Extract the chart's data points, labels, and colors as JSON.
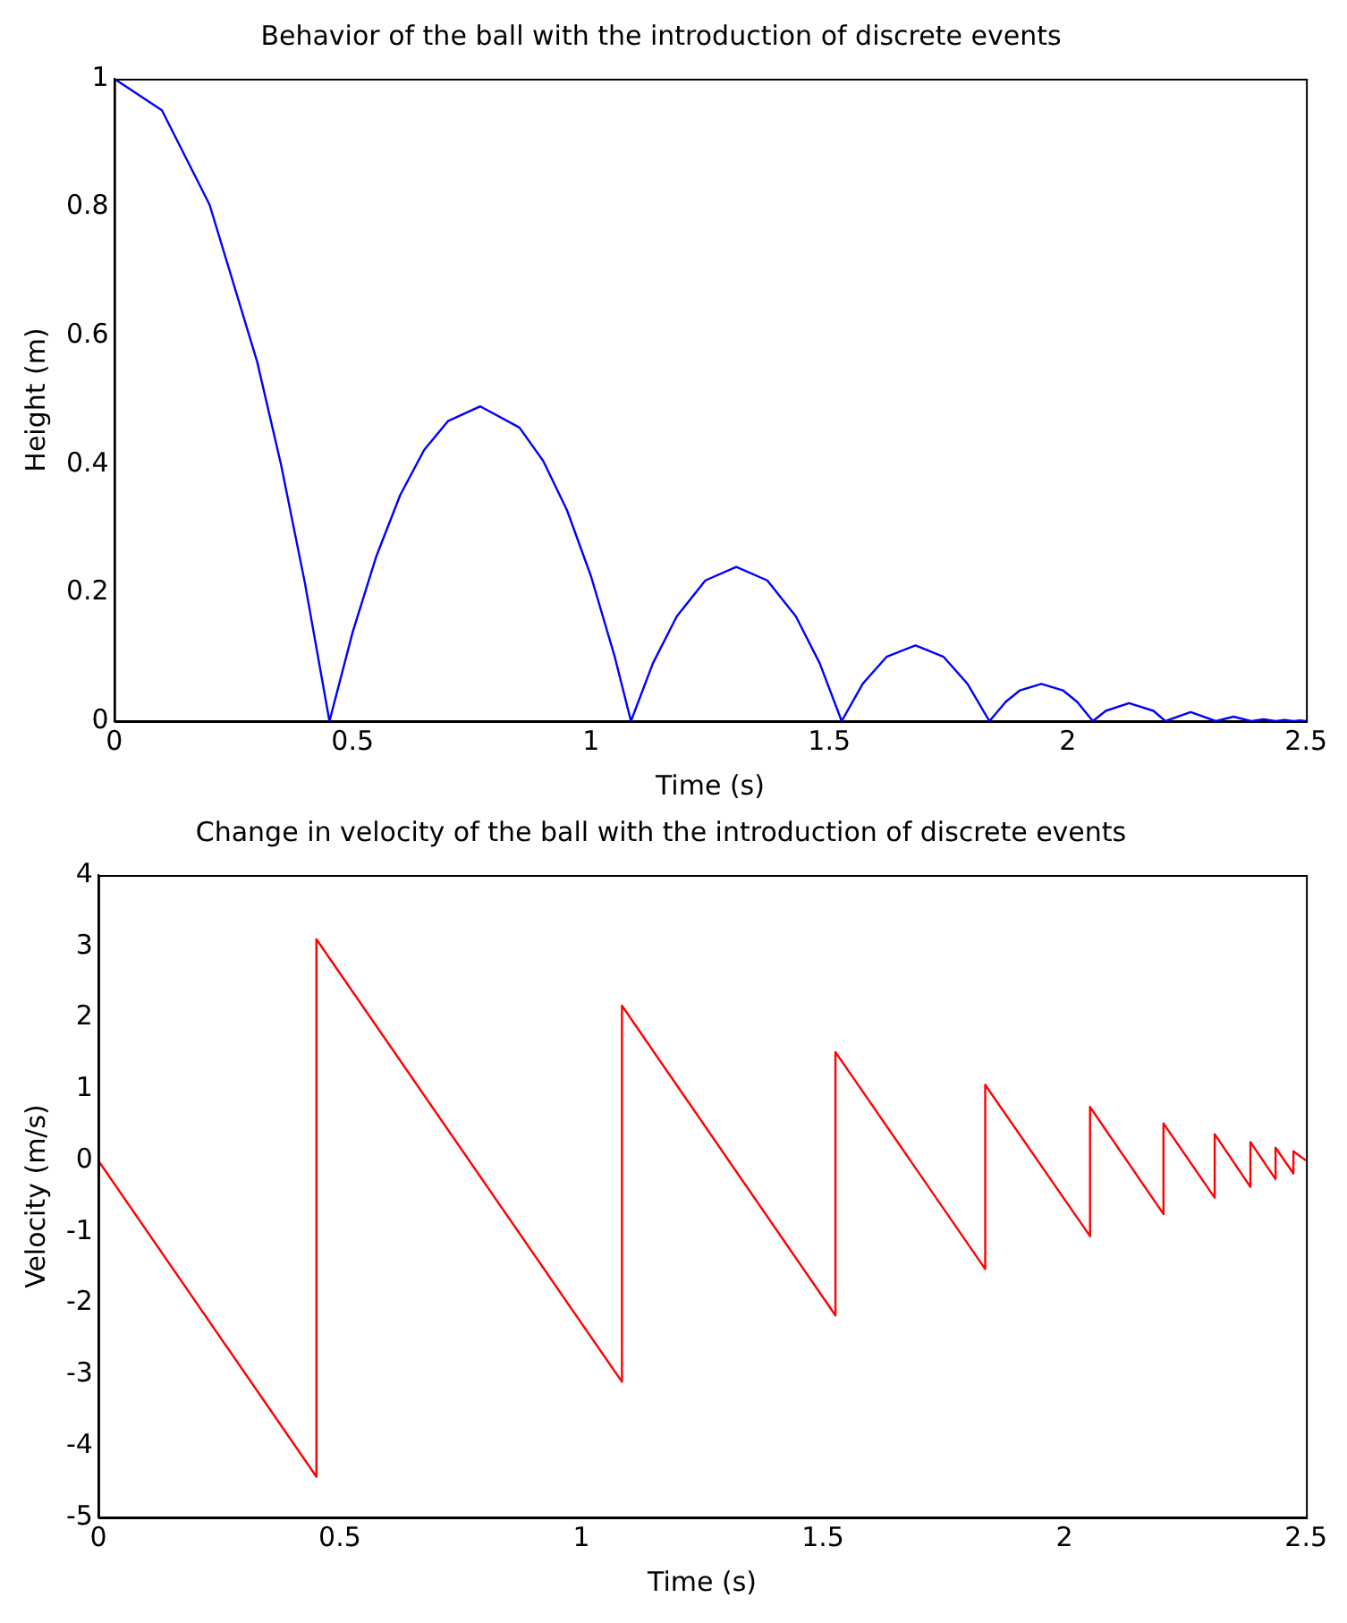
{
  "chart_data": [
    {
      "type": "line",
      "title": "Behavior of the ball with the introduction of discrete events",
      "xlabel": "Time (s)",
      "ylabel": "Height (m)",
      "x": [
        0,
        0.1,
        0.2,
        0.3,
        0.35,
        0.4,
        0.4515,
        0.5,
        0.55,
        0.6,
        0.65,
        0.7,
        0.768,
        0.85,
        0.9,
        0.95,
        1.0,
        1.05,
        1.084,
        1.13,
        1.18,
        1.24,
        1.305,
        1.37,
        1.43,
        1.48,
        1.526,
        1.57,
        1.62,
        1.681,
        1.74,
        1.79,
        1.836,
        1.87,
        1.9,
        1.945,
        1.99,
        2.02,
        2.053,
        2.08,
        2.129,
        2.18,
        2.205,
        2.258,
        2.311,
        2.348,
        2.385,
        2.411,
        2.437,
        2.455,
        2.474,
        2.487,
        2.5
      ],
      "series": [
        {
          "color": "#0000ff",
          "values": [
            1,
            0.951,
            0.804,
            0.559,
            0.399,
            0.215,
            0,
            0.138,
            0.257,
            0.352,
            0.422,
            0.467,
            0.49,
            0.457,
            0.405,
            0.328,
            0.226,
            0.1,
            0,
            0.09,
            0.163,
            0.219,
            0.24,
            0.219,
            0.163,
            0.09,
            0,
            0.058,
            0.1,
            0.118,
            0.1,
            0.058,
            0,
            0.03,
            0.048,
            0.058,
            0.048,
            0.03,
            0,
            0.016,
            0.028,
            0.016,
            0,
            0.014,
            0,
            0.007,
            0,
            0.003,
            0,
            0.002,
            0,
            0.001,
            0
          ]
        }
      ],
      "xlim": [
        0,
        2.5
      ],
      "xticks": [
        0,
        0.5,
        1,
        1.5,
        2,
        2.5
      ],
      "ylim": [
        0,
        1
      ],
      "yticks": [
        0,
        0.2,
        0.4,
        0.6,
        0.8,
        1
      ]
    },
    {
      "type": "line",
      "title": "Change in velocity of the ball with the introduction of discrete events",
      "xlabel": "Time (s)",
      "ylabel": "Velocity (m/s)",
      "x": [
        0,
        0.4515,
        0.4515,
        1.084,
        1.084,
        1.526,
        1.526,
        1.836,
        1.836,
        2.053,
        2.053,
        2.205,
        2.205,
        2.311,
        2.311,
        2.385,
        2.385,
        2.437,
        2.437,
        2.474,
        2.474,
        2.5
      ],
      "series": [
        {
          "color": "#ff0000",
          "values": [
            0,
            -4.43,
            3.1,
            -3.1,
            2.17,
            -2.17,
            1.52,
            -1.52,
            1.06,
            -1.06,
            0.75,
            -0.75,
            0.52,
            -0.52,
            0.37,
            -0.37,
            0.26,
            -0.26,
            0.18,
            -0.18,
            0.13,
            0
          ]
        }
      ],
      "xlim": [
        0,
        2.5
      ],
      "xticks": [
        0,
        0.5,
        1,
        1.5,
        2,
        2.5
      ],
      "ylim": [
        -5,
        4
      ],
      "yticks": [
        -5,
        -4,
        -3,
        -2,
        -1,
        0,
        1,
        2,
        3,
        4
      ]
    }
  ]
}
